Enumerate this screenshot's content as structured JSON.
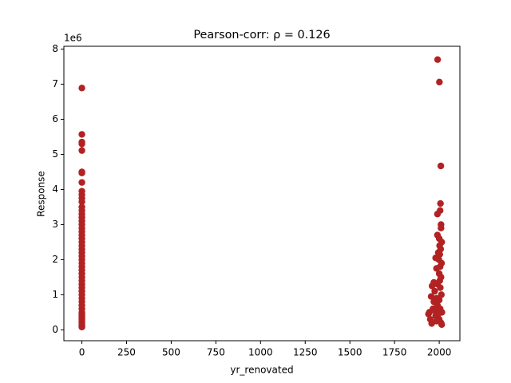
{
  "chart_data": {
    "type": "scatter",
    "title": "Pearson-corr: ρ = 0.126",
    "x_label": "yr_renovated",
    "y_label": "Response",
    "y_offset_text": "1e6",
    "color": "#b22222",
    "x": [
      0,
      0,
      0,
      0,
      0,
      0,
      0,
      0,
      0,
      0,
      0,
      0,
      0,
      0,
      0,
      0,
      0,
      0,
      0,
      0,
      0,
      0,
      0,
      0,
      0,
      0,
      0,
      0,
      0,
      0,
      0,
      0,
      0,
      0,
      0,
      0,
      0,
      0,
      0,
      0,
      0,
      0,
      0,
      0,
      0,
      0,
      0,
      0,
      0,
      0,
      0,
      0,
      1991,
      2001,
      2009,
      2007,
      2005,
      1990,
      2010,
      2010,
      1990,
      2000,
      2014,
      2002,
      2008,
      1995,
      2003,
      1980,
      1998,
      2013,
      2005,
      1985,
      2000,
      2010,
      1970,
      1990,
      1960,
      2006,
      1975,
      2012,
      1955,
      1985,
      2000,
      1945,
      1965,
      1950,
      1958,
      1990,
      2005,
      2015,
      1980,
      2000,
      2010,
      1970,
      1995,
      2014,
      1985,
      2003,
      1975,
      1940
    ],
    "values": [
      6.89,
      5.57,
      5.35,
      5.3,
      5.11,
      4.5,
      4.47,
      4.2,
      3.95,
      3.85,
      3.75,
      3.65,
      3.5,
      3.4,
      3.3,
      3.2,
      3.1,
      3.0,
      2.9,
      2.8,
      2.7,
      2.6,
      2.5,
      2.4,
      2.3,
      2.2,
      2.1,
      2.0,
      1.9,
      1.8,
      1.7,
      1.6,
      1.5,
      1.4,
      1.3,
      1.2,
      1.1,
      1.0,
      0.9,
      0.8,
      0.7,
      0.6,
      0.5,
      0.45,
      0.4,
      0.35,
      0.3,
      0.25,
      0.2,
      0.15,
      0.1,
      0.08,
      7.7,
      7.06,
      4.67,
      3.6,
      3.4,
      3.3,
      3.0,
      2.9,
      2.7,
      2.6,
      2.5,
      2.4,
      2.3,
      2.2,
      2.15,
      2.05,
      2.0,
      1.9,
      1.8,
      1.75,
      1.6,
      1.5,
      1.35,
      1.3,
      1.25,
      1.2,
      1.1,
      1.0,
      0.95,
      0.9,
      0.85,
      0.5,
      0.6,
      0.3,
      0.18,
      0.7,
      0.6,
      0.5,
      0.4,
      0.3,
      0.2,
      0.8,
      0.45,
      0.15,
      0.25,
      1.4,
      0.55,
      0.45
    ],
    "xlim": [
      -100.75,
      2115.75
    ],
    "ylim": [
      -0.31,
      8.08
    ],
    "xticks": [
      0,
      250,
      500,
      750,
      1000,
      1250,
      1500,
      1750,
      2000
    ],
    "yticks": [
      0,
      1,
      2,
      3,
      4,
      5,
      6,
      7,
      8
    ]
  }
}
